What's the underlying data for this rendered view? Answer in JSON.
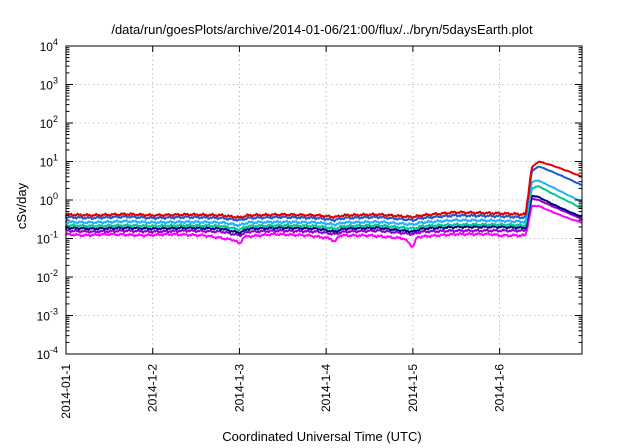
{
  "chart_data": {
    "type": "line",
    "title": "/data/run/goesPlots/archive/2014-01-06/21:00/flux/../bryn/5daysEarth.plot",
    "xlabel": "Coordinated Universal Time (UTC)",
    "ylabel": "cSv/day",
    "y_scale": "log",
    "ylim": [
      0.0001,
      10000
    ],
    "xlim": [
      0,
      5.95
    ],
    "x_ticks": [
      {
        "x": 0,
        "label": "2014-01-1"
      },
      {
        "x": 1,
        "label": "2014-1-2"
      },
      {
        "x": 2,
        "label": "2014-1-3"
      },
      {
        "x": 3,
        "label": "2014-1-4"
      },
      {
        "x": 4,
        "label": "2014-1-5"
      },
      {
        "x": 5,
        "label": "2014-1-6"
      }
    ],
    "y_ticks": [
      {
        "value": 0.0001,
        "base": "10",
        "exp": "-4"
      },
      {
        "value": 0.001,
        "base": "10",
        "exp": "-3"
      },
      {
        "value": 0.01,
        "base": "10",
        "exp": "-2"
      },
      {
        "value": 0.1,
        "base": "10",
        "exp": "-1"
      },
      {
        "value": 1,
        "base": "10",
        "exp": "0"
      },
      {
        "value": 10,
        "base": "10",
        "exp": "1"
      },
      {
        "value": 100,
        "base": "10",
        "exp": "2"
      },
      {
        "value": 1000,
        "base": "10",
        "exp": "3"
      },
      {
        "value": 10000,
        "base": "10",
        "exp": "4"
      }
    ],
    "grid": true,
    "legend": "none",
    "series": [
      {
        "color": "#ff00ff",
        "points": [
          [
            0,
            0.13
          ],
          [
            0.2,
            0.12
          ],
          [
            0.5,
            0.13
          ],
          [
            0.9,
            0.12
          ],
          [
            1.2,
            0.13
          ],
          [
            1.6,
            0.12
          ],
          [
            1.95,
            0.09
          ],
          [
            2.0,
            0.07
          ],
          [
            2.05,
            0.11
          ],
          [
            2.4,
            0.13
          ],
          [
            2.8,
            0.12
          ],
          [
            3.05,
            0.1
          ],
          [
            3.1,
            0.08
          ],
          [
            3.15,
            0.12
          ],
          [
            3.5,
            0.12
          ],
          [
            3.9,
            0.1
          ],
          [
            4.0,
            0.06
          ],
          [
            4.05,
            0.11
          ],
          [
            4.5,
            0.13
          ],
          [
            4.9,
            0.13
          ],
          [
            5.0,
            0.12
          ],
          [
            5.3,
            0.12
          ],
          [
            5.37,
            0.7
          ],
          [
            5.45,
            0.7
          ],
          [
            5.6,
            0.5
          ],
          [
            5.8,
            0.33
          ],
          [
            5.95,
            0.26
          ]
        ]
      },
      {
        "color": "#9400d3",
        "points": [
          [
            0,
            0.16
          ],
          [
            0.3,
            0.15
          ],
          [
            0.7,
            0.16
          ],
          [
            1.0,
            0.15
          ],
          [
            1.4,
            0.16
          ],
          [
            1.8,
            0.15
          ],
          [
            2.0,
            0.12
          ],
          [
            2.1,
            0.15
          ],
          [
            2.5,
            0.16
          ],
          [
            2.9,
            0.15
          ],
          [
            3.1,
            0.13
          ],
          [
            3.2,
            0.15
          ],
          [
            3.6,
            0.16
          ],
          [
            4.0,
            0.13
          ],
          [
            4.1,
            0.15
          ],
          [
            4.5,
            0.16
          ],
          [
            5.0,
            0.16
          ],
          [
            5.3,
            0.16
          ],
          [
            5.37,
            1.1
          ],
          [
            5.45,
            1.0
          ],
          [
            5.6,
            0.7
          ],
          [
            5.8,
            0.45
          ],
          [
            5.95,
            0.32
          ]
        ]
      },
      {
        "color": "#000080",
        "points": [
          [
            0,
            0.19
          ],
          [
            0.3,
            0.18
          ],
          [
            0.7,
            0.19
          ],
          [
            1.0,
            0.18
          ],
          [
            1.4,
            0.19
          ],
          [
            1.8,
            0.18
          ],
          [
            2.0,
            0.14
          ],
          [
            2.1,
            0.18
          ],
          [
            2.5,
            0.19
          ],
          [
            2.9,
            0.18
          ],
          [
            3.1,
            0.15
          ],
          [
            3.2,
            0.18
          ],
          [
            3.6,
            0.19
          ],
          [
            4.0,
            0.15
          ],
          [
            4.1,
            0.18
          ],
          [
            4.5,
            0.2
          ],
          [
            5.0,
            0.2
          ],
          [
            5.3,
            0.19
          ],
          [
            5.37,
            1.3
          ],
          [
            5.45,
            1.2
          ],
          [
            5.6,
            0.8
          ],
          [
            5.8,
            0.5
          ],
          [
            5.95,
            0.36
          ]
        ]
      },
      {
        "color": "#00c890",
        "points": [
          [
            0,
            0.22
          ],
          [
            0.3,
            0.21
          ],
          [
            0.7,
            0.22
          ],
          [
            1.0,
            0.21
          ],
          [
            1.4,
            0.22
          ],
          [
            1.8,
            0.21
          ],
          [
            2.0,
            0.17
          ],
          [
            2.1,
            0.21
          ],
          [
            2.5,
            0.22
          ],
          [
            2.9,
            0.21
          ],
          [
            3.1,
            0.18
          ],
          [
            3.2,
            0.21
          ],
          [
            3.6,
            0.22
          ],
          [
            4.0,
            0.18
          ],
          [
            4.1,
            0.21
          ],
          [
            4.5,
            0.23
          ],
          [
            5.0,
            0.23
          ],
          [
            5.3,
            0.22
          ],
          [
            5.37,
            2.0
          ],
          [
            5.45,
            2.3
          ],
          [
            5.6,
            1.5
          ],
          [
            5.8,
            0.9
          ],
          [
            5.95,
            0.6
          ]
        ]
      },
      {
        "color": "#20b0ff",
        "points": [
          [
            0,
            0.27
          ],
          [
            0.3,
            0.26
          ],
          [
            0.7,
            0.28
          ],
          [
            1.0,
            0.26
          ],
          [
            1.4,
            0.27
          ],
          [
            1.8,
            0.26
          ],
          [
            2.0,
            0.22
          ],
          [
            2.1,
            0.26
          ],
          [
            2.5,
            0.27
          ],
          [
            2.9,
            0.26
          ],
          [
            3.1,
            0.23
          ],
          [
            3.2,
            0.26
          ],
          [
            3.6,
            0.27
          ],
          [
            4.0,
            0.23
          ],
          [
            4.1,
            0.26
          ],
          [
            4.5,
            0.3
          ],
          [
            5.0,
            0.29
          ],
          [
            5.3,
            0.27
          ],
          [
            5.37,
            3.0
          ],
          [
            5.45,
            3.2
          ],
          [
            5.6,
            2.2
          ],
          [
            5.8,
            1.3
          ],
          [
            5.95,
            0.9
          ]
        ]
      },
      {
        "color": "#1a5bd6",
        "points": [
          [
            0,
            0.36
          ],
          [
            0.3,
            0.34
          ],
          [
            0.7,
            0.37
          ],
          [
            1.0,
            0.34
          ],
          [
            1.4,
            0.36
          ],
          [
            1.8,
            0.34
          ],
          [
            2.0,
            0.3
          ],
          [
            2.1,
            0.34
          ],
          [
            2.5,
            0.36
          ],
          [
            2.9,
            0.34
          ],
          [
            3.1,
            0.3
          ],
          [
            3.2,
            0.34
          ],
          [
            3.6,
            0.36
          ],
          [
            4.0,
            0.3
          ],
          [
            4.1,
            0.34
          ],
          [
            4.5,
            0.4
          ],
          [
            5.0,
            0.38
          ],
          [
            5.3,
            0.35
          ],
          [
            5.37,
            5.5
          ],
          [
            5.45,
            7.5
          ],
          [
            5.6,
            5.5
          ],
          [
            5.8,
            3.5
          ],
          [
            5.95,
            2.4
          ]
        ]
      },
      {
        "color": "#e00000",
        "points": [
          [
            0,
            0.42
          ],
          [
            0.3,
            0.4
          ],
          [
            0.7,
            0.43
          ],
          [
            1.0,
            0.4
          ],
          [
            1.4,
            0.42
          ],
          [
            1.8,
            0.4
          ],
          [
            2.0,
            0.35
          ],
          [
            2.1,
            0.4
          ],
          [
            2.5,
            0.42
          ],
          [
            2.9,
            0.4
          ],
          [
            3.1,
            0.36
          ],
          [
            3.2,
            0.4
          ],
          [
            3.6,
            0.42
          ],
          [
            4.0,
            0.36
          ],
          [
            4.1,
            0.4
          ],
          [
            4.5,
            0.48
          ],
          [
            5.0,
            0.45
          ],
          [
            5.3,
            0.42
          ],
          [
            5.37,
            7.0
          ],
          [
            5.45,
            10.0
          ],
          [
            5.6,
            8.0
          ],
          [
            5.8,
            5.5
          ],
          [
            5.95,
            4.0
          ]
        ]
      }
    ]
  }
}
